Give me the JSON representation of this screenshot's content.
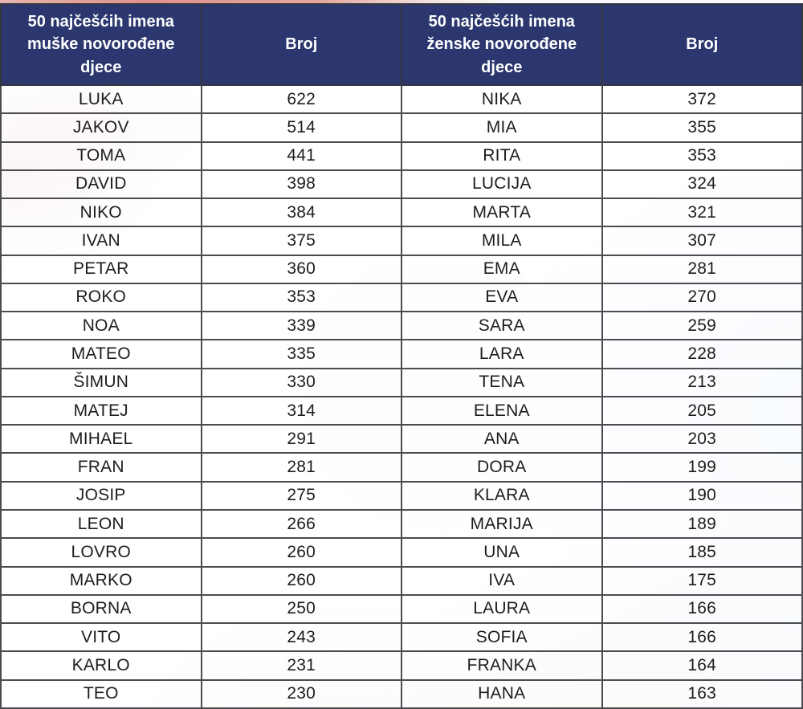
{
  "colors": {
    "header_bg": "#2b376e",
    "header_text": "#ffffff",
    "grid_border": "#4a4c50",
    "cell_text": "#1d1d1d"
  },
  "table": {
    "headers": [
      {
        "label": "50 najčešćih imena muške novorođene djece"
      },
      {
        "label": "Broj"
      },
      {
        "label": "50 najčešćih imena ženske novorođene djece"
      },
      {
        "label": "Broj"
      }
    ],
    "rows": [
      {
        "male_name": "LUKA",
        "male_count": 622,
        "female_name": "NIKA",
        "female_count": 372
      },
      {
        "male_name": "JAKOV",
        "male_count": 514,
        "female_name": "MIA",
        "female_count": 355
      },
      {
        "male_name": "TOMA",
        "male_count": 441,
        "female_name": "RITA",
        "female_count": 353
      },
      {
        "male_name": "DAVID",
        "male_count": 398,
        "female_name": "LUCIJA",
        "female_count": 324
      },
      {
        "male_name": "NIKO",
        "male_count": 384,
        "female_name": "MARTA",
        "female_count": 321
      },
      {
        "male_name": "IVAN",
        "male_count": 375,
        "female_name": "MILA",
        "female_count": 307
      },
      {
        "male_name": "PETAR",
        "male_count": 360,
        "female_name": "EMA",
        "female_count": 281
      },
      {
        "male_name": "ROKO",
        "male_count": 353,
        "female_name": "EVA",
        "female_count": 270
      },
      {
        "male_name": "NOA",
        "male_count": 339,
        "female_name": "SARA",
        "female_count": 259
      },
      {
        "male_name": "MATEO",
        "male_count": 335,
        "female_name": "LARA",
        "female_count": 228
      },
      {
        "male_name": "ŠIMUN",
        "male_count": 330,
        "female_name": "TENA",
        "female_count": 213
      },
      {
        "male_name": "MATEJ",
        "male_count": 314,
        "female_name": "ELENA",
        "female_count": 205
      },
      {
        "male_name": "MIHAEL",
        "male_count": 291,
        "female_name": "ANA",
        "female_count": 203
      },
      {
        "male_name": "FRAN",
        "male_count": 281,
        "female_name": "DORA",
        "female_count": 199
      },
      {
        "male_name": "JOSIP",
        "male_count": 275,
        "female_name": "KLARA",
        "female_count": 190
      },
      {
        "male_name": "LEON",
        "male_count": 266,
        "female_name": "MARIJA",
        "female_count": 189
      },
      {
        "male_name": "LOVRO",
        "male_count": 260,
        "female_name": "UNA",
        "female_count": 185
      },
      {
        "male_name": "MARKO",
        "male_count": 260,
        "female_name": "IVA",
        "female_count": 175
      },
      {
        "male_name": "BORNA",
        "male_count": 250,
        "female_name": "LAURA",
        "female_count": 166
      },
      {
        "male_name": "VITO",
        "male_count": 243,
        "female_name": "SOFIA",
        "female_count": 166
      },
      {
        "male_name": "KARLO",
        "male_count": 231,
        "female_name": "FRANKA",
        "female_count": 164
      },
      {
        "male_name": "TEO",
        "male_count": 230,
        "female_name": "HANA",
        "female_count": 163
      }
    ]
  }
}
